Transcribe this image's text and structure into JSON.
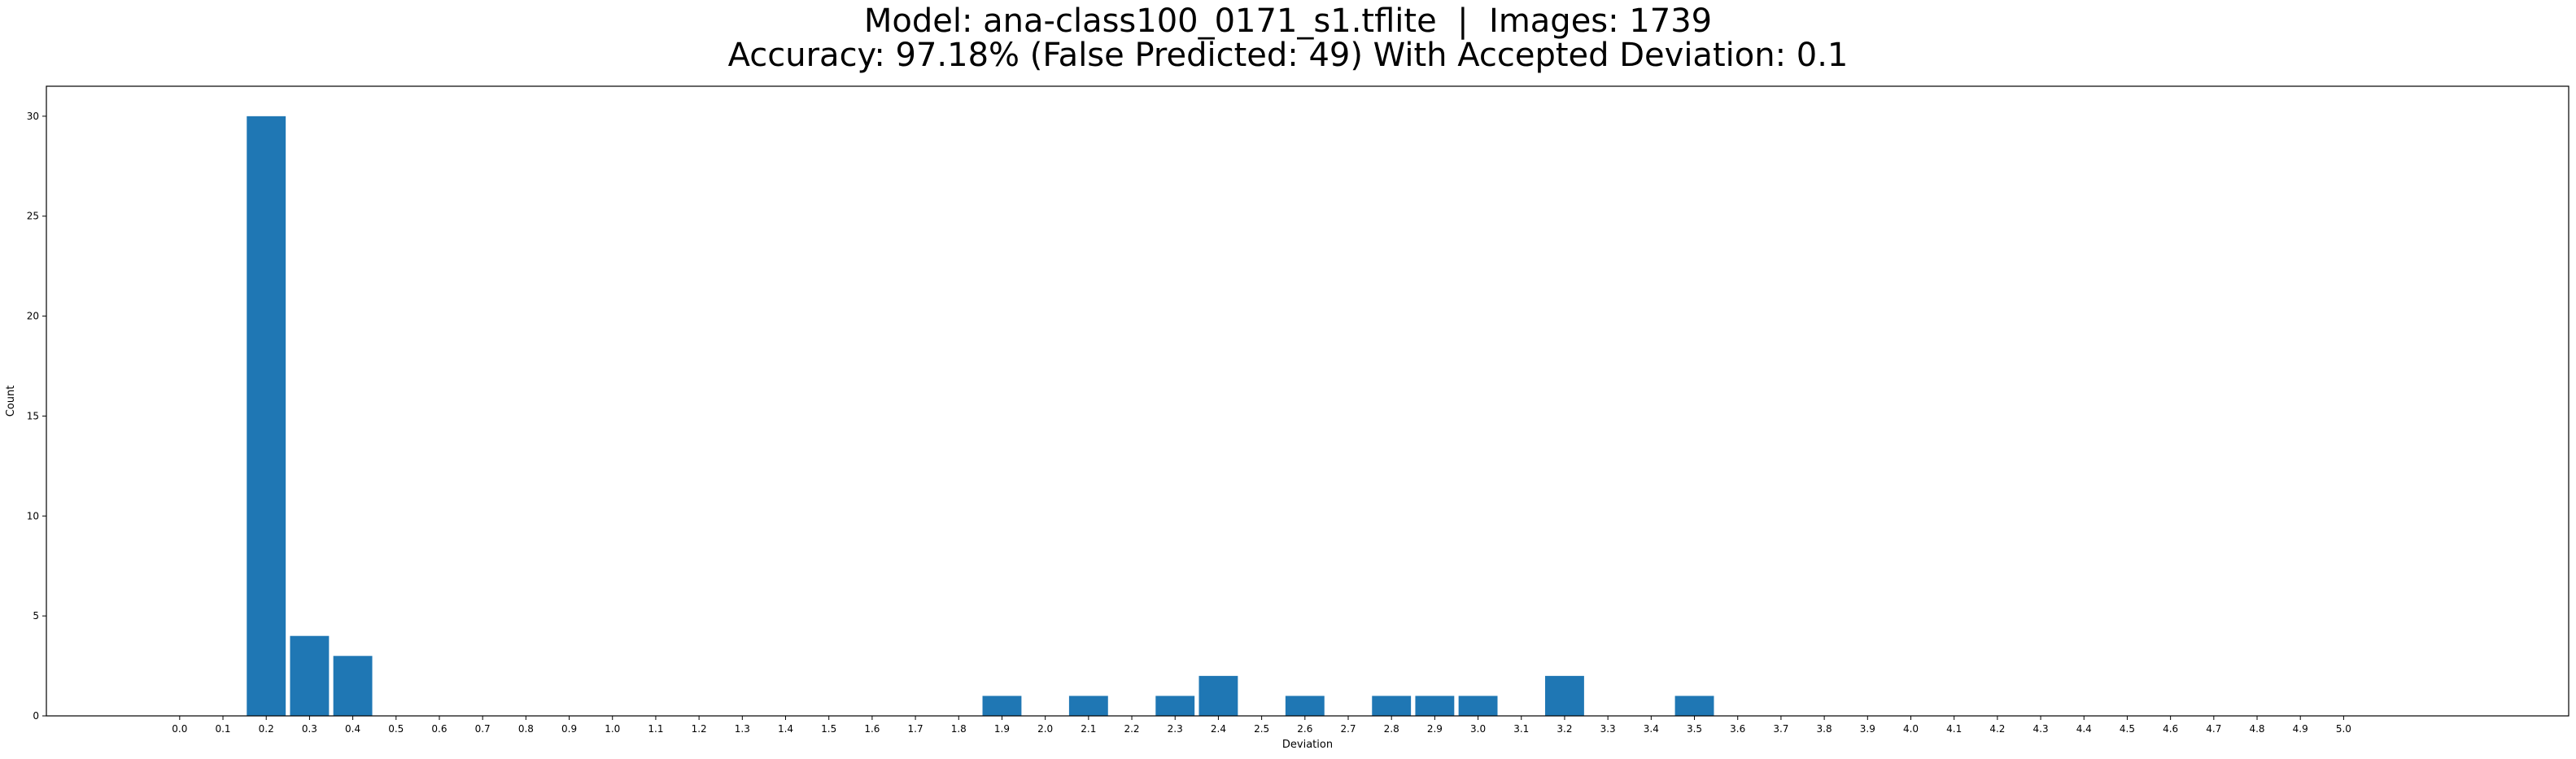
{
  "chart_data": {
    "type": "bar",
    "title_line_1": "Model: ana-class100_0171_s1.tflite  |  Images: 1739",
    "title_line_2": "Accuracy: 97.18% (False Predicted: 49) With Accepted Deviation: 0.1",
    "xlabel": "Deviation",
    "ylabel": "Count",
    "ylim": [
      0,
      31.5
    ],
    "yticks": [
      0,
      5,
      10,
      15,
      20,
      25,
      30
    ],
    "grid": false,
    "bar_color": "#1f77b4",
    "categories": [
      "0.0",
      "0.1",
      "0.2",
      "0.3",
      "0.4",
      "0.5",
      "0.6",
      "0.7",
      "0.8",
      "0.9",
      "1.0",
      "1.1",
      "1.2",
      "1.3",
      "1.4",
      "1.5",
      "1.6",
      "1.7",
      "1.8",
      "1.9",
      "2.0",
      "2.1",
      "2.2",
      "2.3",
      "2.4",
      "2.5",
      "2.6",
      "2.7",
      "2.8",
      "2.9",
      "3.0",
      "3.1",
      "3.2",
      "3.3",
      "3.4",
      "3.5",
      "3.6",
      "3.7",
      "3.8",
      "3.9",
      "4.0",
      "4.1",
      "4.2",
      "4.3",
      "4.4",
      "4.5",
      "4.6",
      "4.7",
      "4.8",
      "4.9",
      "5.0"
    ],
    "values": [
      0,
      0,
      30,
      4,
      3,
      0,
      0,
      0,
      0,
      0,
      0,
      0,
      0,
      0,
      0,
      0,
      0,
      0,
      0,
      1,
      0,
      1,
      0,
      1,
      2,
      0,
      1,
      0,
      1,
      1,
      1,
      0,
      2,
      0,
      0,
      1,
      0,
      0,
      0,
      0,
      0,
      0,
      0,
      0,
      0,
      0,
      0,
      0,
      0,
      0,
      0
    ]
  }
}
